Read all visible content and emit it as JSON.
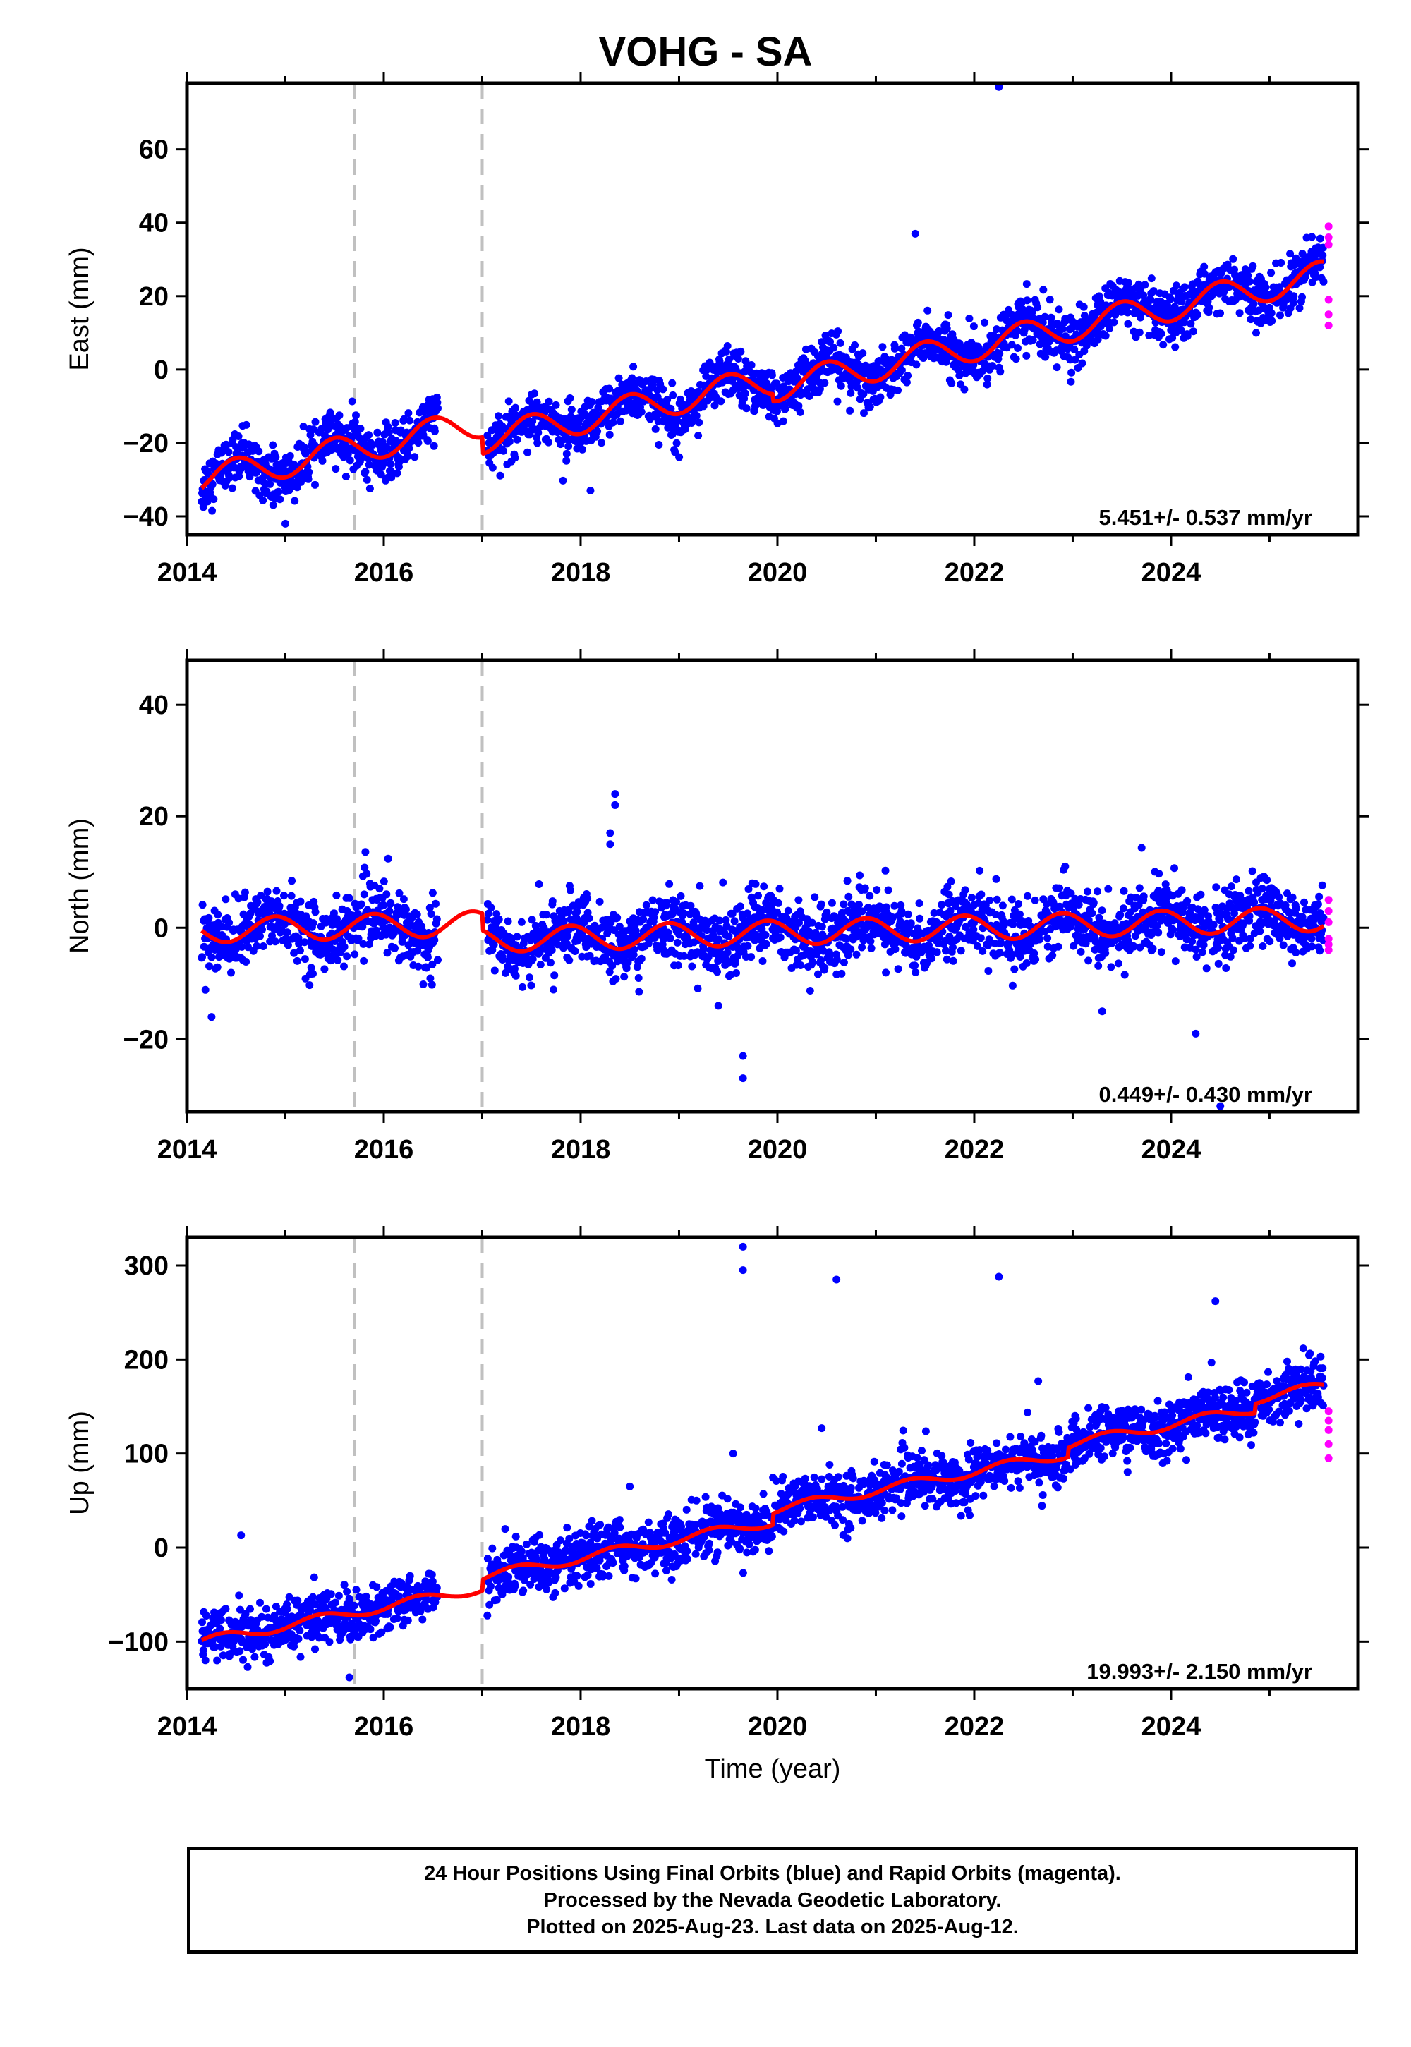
{
  "page": {
    "title": "VOHG - SA"
  },
  "chart_data": [
    {
      "type": "scatter",
      "panel": "east",
      "ylabel": "East (mm)",
      "xlim": [
        2014.0,
        2025.9
      ],
      "ylim": [
        -45,
        78
      ],
      "yticks": [
        -40,
        -20,
        0,
        20,
        40,
        60
      ],
      "xticks": [
        2014,
        2016,
        2018,
        2020,
        2022,
        2024
      ],
      "velocity_label": "5.451+/- 0.537 mm/yr",
      "breaks": [
        2015.7,
        2017.0
      ],
      "trend": {
        "t0": 2014.15,
        "y0": -30,
        "rate": 5.451,
        "annual_amp": 4.0,
        "phase": 0.25,
        "offsets": [
          {
            "t": 2017.0,
            "dy": -4.5
          },
          {
            "t": 2019.95,
            "dy": -2.0
          }
        ]
      },
      "scatter": 3.5,
      "data_gaps": [
        [
          2016.55,
          2017.05
        ]
      ],
      "outliers": [
        {
          "x": 2022.25,
          "y": 77
        },
        {
          "x": 2018.1,
          "y": -33
        },
        {
          "x": 2015.0,
          "y": -42
        },
        {
          "x": 2021.4,
          "y": 37
        }
      ],
      "rapid_points": [
        {
          "x": 2025.6,
          "y": 39
        },
        {
          "x": 2025.6,
          "y": 36
        },
        {
          "x": 2025.6,
          "y": 34
        },
        {
          "x": 2025.6,
          "y": 19
        },
        {
          "x": 2025.6,
          "y": 15
        },
        {
          "x": 2025.6,
          "y": 12
        }
      ]
    },
    {
      "type": "scatter",
      "panel": "north",
      "ylabel": "North (mm)",
      "xlim": [
        2014.0,
        2025.9
      ],
      "ylim": [
        -33,
        48
      ],
      "yticks": [
        -20,
        0,
        20,
        40
      ],
      "xticks": [
        2014,
        2016,
        2018,
        2020,
        2022,
        2024
      ],
      "velocity_label": "0.449+/- 0.430 mm/yr",
      "breaks": [
        2015.7,
        2017.0
      ],
      "trend": {
        "t0": 2014.15,
        "y0": -0.5,
        "rate": 0.449,
        "annual_amp": 2.2,
        "phase": 0.65,
        "offsets": [
          {
            "t": 2017.0,
            "dy": -3.0
          }
        ]
      },
      "scatter": 3.0,
      "data_gaps": [
        [
          2016.55,
          2017.05
        ]
      ],
      "outliers": [
        {
          "x": 2018.35,
          "y": 24
        },
        {
          "x": 2018.35,
          "y": 22
        },
        {
          "x": 2018.3,
          "y": 17
        },
        {
          "x": 2018.3,
          "y": 15
        },
        {
          "x": 2019.65,
          "y": -23
        },
        {
          "x": 2019.65,
          "y": -27
        },
        {
          "x": 2024.5,
          "y": -32
        },
        {
          "x": 2024.25,
          "y": -19
        },
        {
          "x": 2023.3,
          "y": -15
        },
        {
          "x": 2019.4,
          "y": -14
        },
        {
          "x": 2014.25,
          "y": -16
        }
      ],
      "rapid_points": [
        {
          "x": 2025.6,
          "y": 5
        },
        {
          "x": 2025.6,
          "y": 3
        },
        {
          "x": 2025.6,
          "y": 1
        },
        {
          "x": 2025.6,
          "y": -2
        },
        {
          "x": 2025.6,
          "y": -3
        },
        {
          "x": 2025.6,
          "y": -4
        }
      ]
    },
    {
      "type": "scatter",
      "panel": "up",
      "ylabel": "Up (mm)",
      "xlabel": "Time (year)",
      "xlim": [
        2014.0,
        2025.9
      ],
      "ylim": [
        -150,
        330
      ],
      "yticks": [
        -100,
        0,
        100,
        200,
        300
      ],
      "xticks": [
        2014,
        2016,
        2018,
        2020,
        2022,
        2024
      ],
      "velocity_label": "19.993+/- 2.150 mm/yr",
      "breaks": [
        2015.7,
        2017.0
      ],
      "trend": {
        "t0": 2014.15,
        "y0": -100,
        "rate": 19.993,
        "annual_amp": 5.0,
        "phase": 0.1,
        "offsets": [
          {
            "t": 2017.0,
            "dy": 12
          },
          {
            "t": 2019.95,
            "dy": 12
          },
          {
            "t": 2022.95,
            "dy": 10
          },
          {
            "t": 2024.85,
            "dy": 10
          }
        ]
      },
      "scatter": 14.0,
      "data_gaps": [
        [
          2016.55,
          2017.05
        ]
      ],
      "outliers": [
        {
          "x": 2019.65,
          "y": 320
        },
        {
          "x": 2019.65,
          "y": 295
        },
        {
          "x": 2020.6,
          "y": 285
        },
        {
          "x": 2022.25,
          "y": 288
        },
        {
          "x": 2024.45,
          "y": 262
        },
        {
          "x": 2014.55,
          "y": 13
        },
        {
          "x": 2022.65,
          "y": 177
        },
        {
          "x": 2020.45,
          "y": 127
        },
        {
          "x": 2019.55,
          "y": 100
        },
        {
          "x": 2015.65,
          "y": -138
        },
        {
          "x": 2018.5,
          "y": 65
        }
      ],
      "rapid_points": [
        {
          "x": 2025.6,
          "y": 145
        },
        {
          "x": 2025.6,
          "y": 135
        },
        {
          "x": 2025.6,
          "y": 125
        },
        {
          "x": 2025.6,
          "y": 110
        },
        {
          "x": 2025.6,
          "y": 95
        }
      ]
    }
  ],
  "footer": {
    "line1": "24 Hour Positions Using Final Orbits (blue) and Rapid Orbits (magenta).",
    "line2": "Processed by the Nevada Geodetic Laboratory.",
    "line3": "Plotted on 2025-Aug-23. Last data on 2025-Aug-12."
  },
  "colors": {
    "final": "#0000ff",
    "rapid": "#ff00ff",
    "model": "#ff0000",
    "break": "#c0c0c0",
    "frame": "#000000"
  }
}
